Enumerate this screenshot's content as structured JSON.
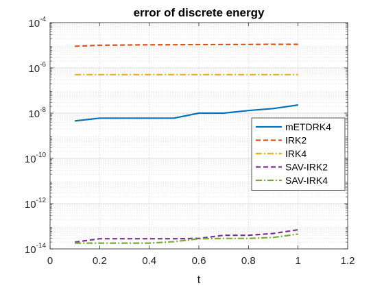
{
  "chart_data": {
    "type": "line",
    "title": "error of discrete energy",
    "xlabel": "t",
    "ylabel": "",
    "xlim": [
      0,
      1.2
    ],
    "ylim_exponent": [
      -14,
      -4
    ],
    "yscale": "log",
    "grid": true,
    "minor_grid": true,
    "legend_position": "right",
    "x_ticks": [
      "0",
      "0.2",
      "0.4",
      "0.6",
      "0.8",
      "1",
      "1.2"
    ],
    "y_tick_base": "10",
    "y_tick_exponents": [
      "-14",
      "-12",
      "-10",
      "-8",
      "-6",
      "-4"
    ],
    "x": [
      0.1,
      0.2,
      0.3,
      0.4,
      0.5,
      0.6,
      0.7,
      0.8,
      0.9,
      1.0
    ],
    "series": [
      {
        "name": "mETDRK4",
        "color": "#0072BD",
        "style": "solid",
        "values": [
          4.5e-09,
          6e-09,
          6e-09,
          6e-09,
          6e-09,
          1e-08,
          1e-08,
          1.3e-08,
          1.6e-08,
          2.3e-08
        ]
      },
      {
        "name": "IRK2",
        "color": "#D95319",
        "style": "dashed",
        "values": [
          9e-06,
          1e-05,
          1.03e-05,
          1.05e-05,
          1.06e-05,
          1.07e-05,
          1.08e-05,
          1.09e-05,
          1.1e-05,
          1.1e-05
        ]
      },
      {
        "name": "IRK4",
        "color": "#EDB120",
        "style": "dashdot",
        "values": [
          5e-07,
          5e-07,
          5e-07,
          5e-07,
          5e-07,
          5e-07,
          5e-07,
          5e-07,
          5e-07,
          5e-07
        ]
      },
      {
        "name": "SAV-IRK2",
        "color": "#7E2F8E",
        "style": "dashed",
        "values": [
          2e-14,
          2.8e-14,
          2.8e-14,
          2.8e-14,
          2.8e-14,
          2.9e-14,
          4e-14,
          4e-14,
          4.8e-14,
          7e-14
        ]
      },
      {
        "name": "SAV-IRK4",
        "color": "#77AC30",
        "style": "dashdot",
        "values": [
          1.8e-14,
          1.8e-14,
          1.8e-14,
          1.8e-14,
          2.1e-14,
          2.8e-14,
          2.9e-14,
          2.9e-14,
          3.2e-14,
          4.5e-14
        ]
      }
    ]
  }
}
